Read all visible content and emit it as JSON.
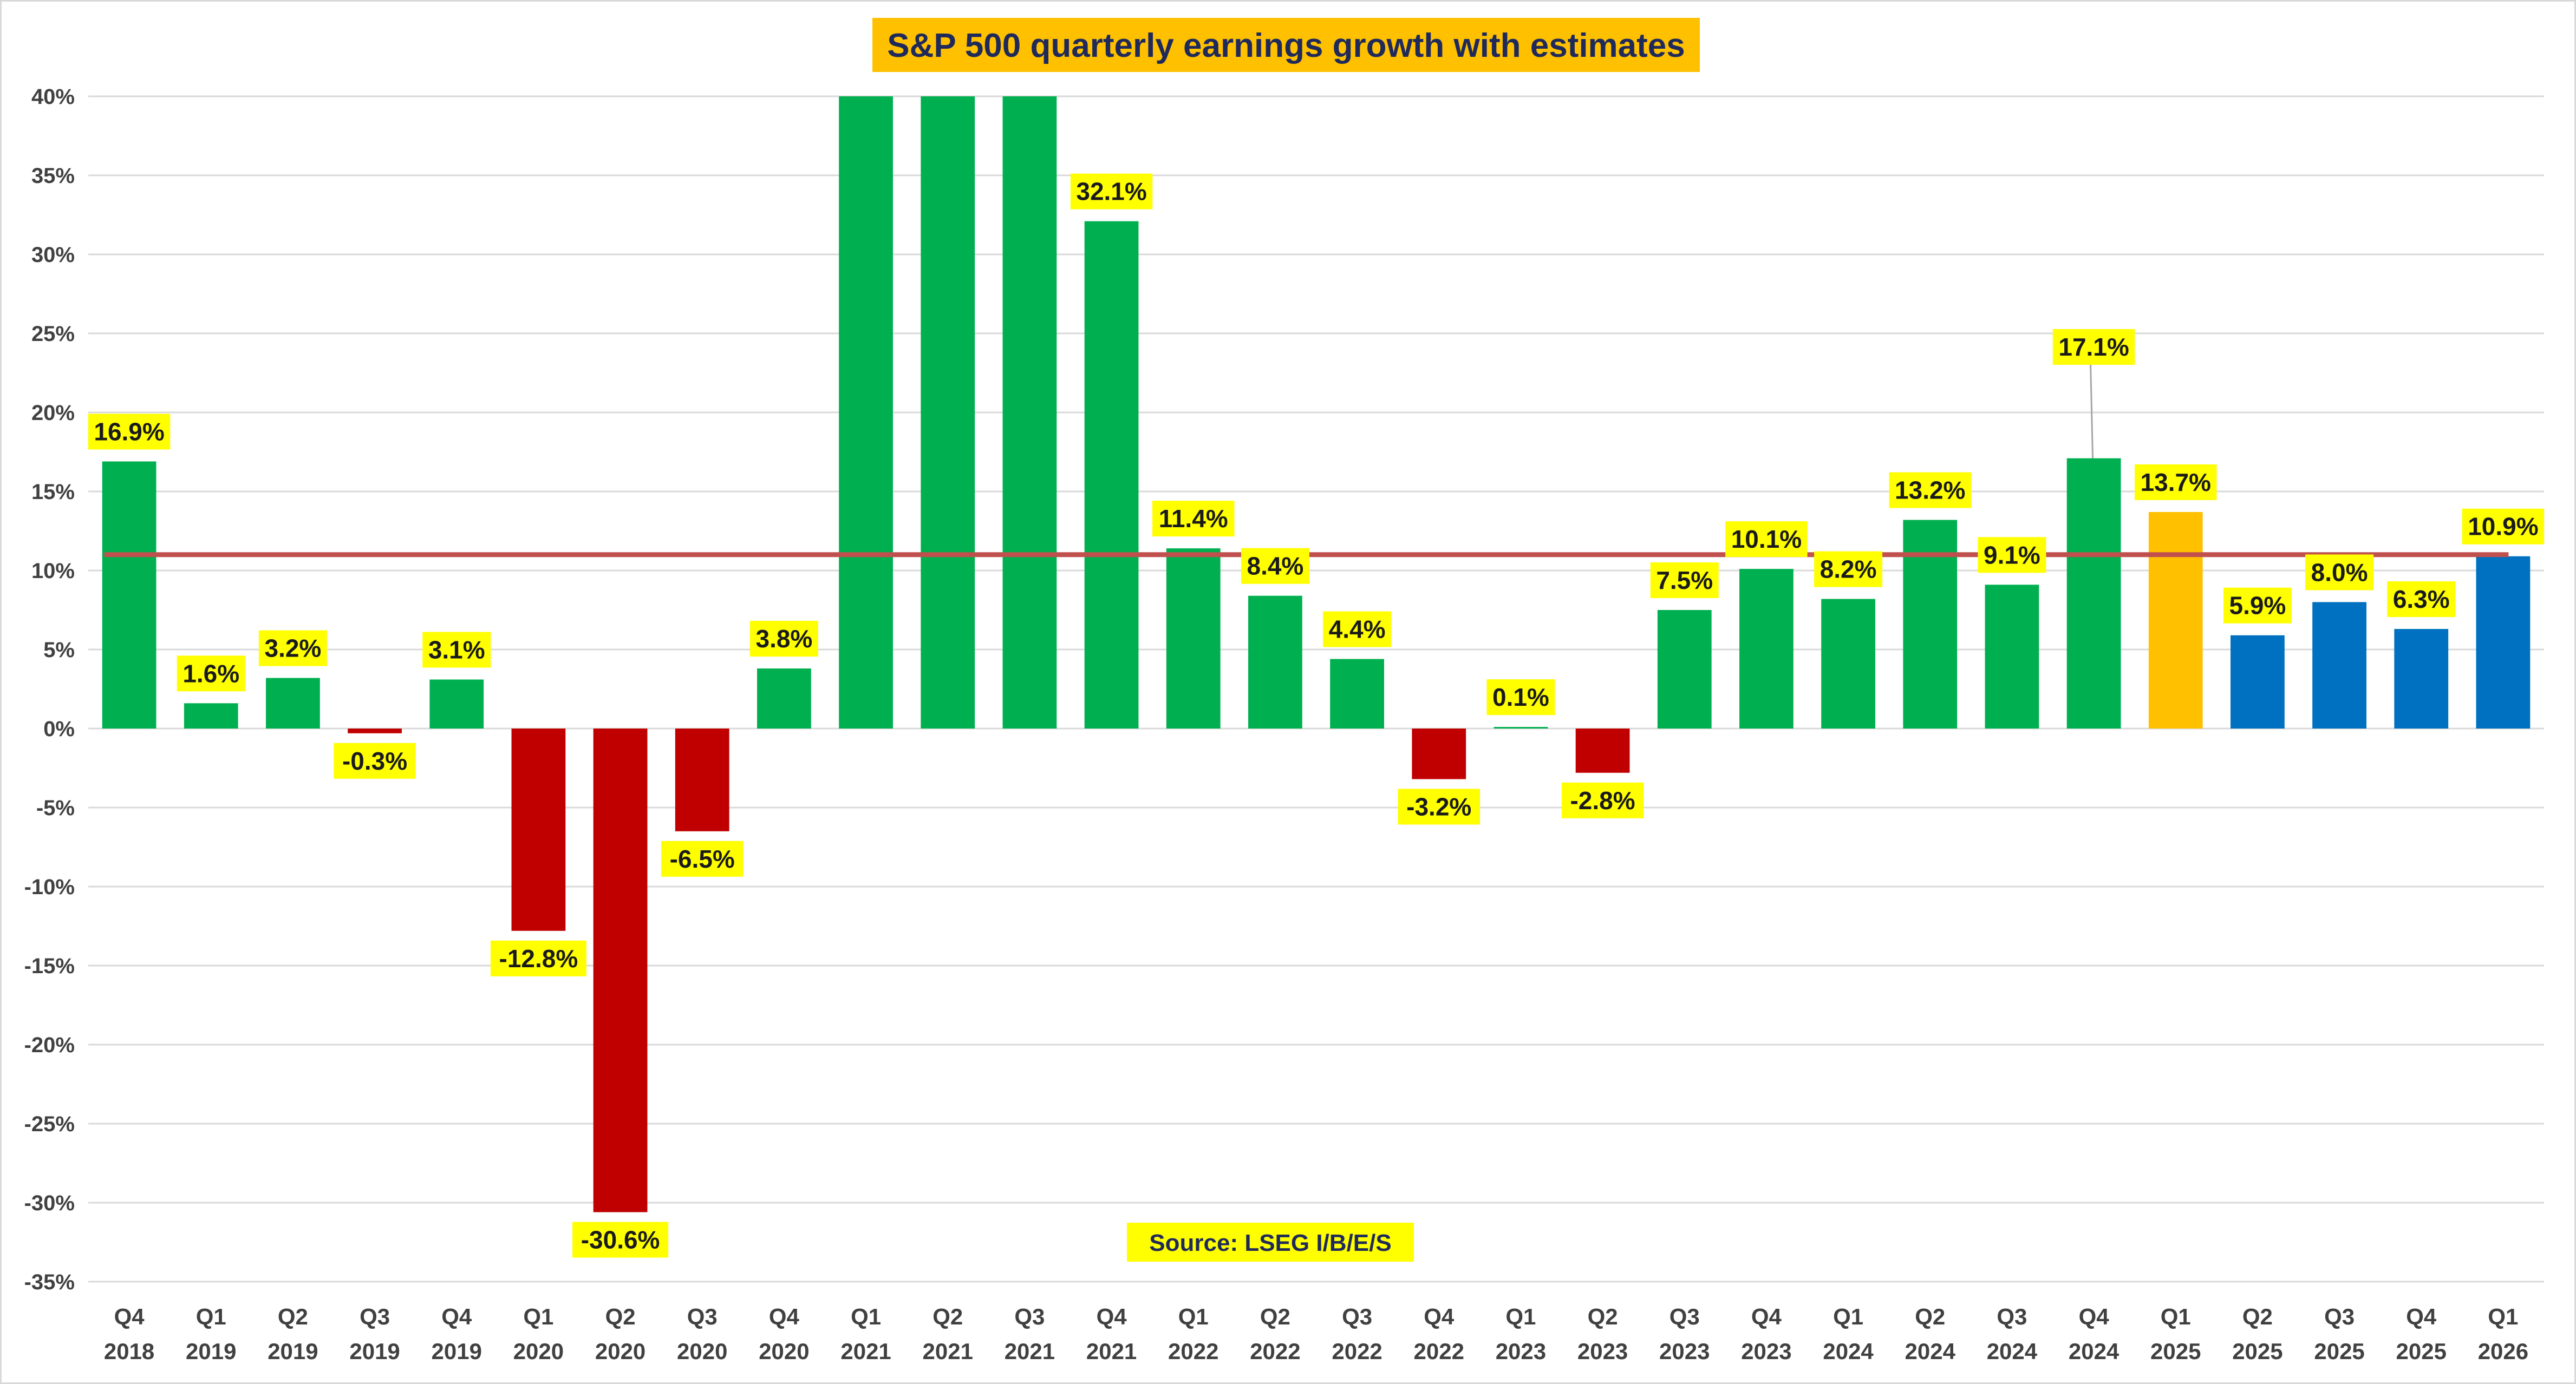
{
  "chart_data": {
    "type": "bar",
    "title": "S&P 500 quarterly earnings growth with estimates",
    "source_note": "Source: LSEG I/B/E/S",
    "categories": [
      [
        "Q4",
        "2018"
      ],
      [
        "Q1",
        "2019"
      ],
      [
        "Q2",
        "2019"
      ],
      [
        "Q3",
        "2019"
      ],
      [
        "Q4",
        "2019"
      ],
      [
        "Q1",
        "2020"
      ],
      [
        "Q2",
        "2020"
      ],
      [
        "Q3",
        "2020"
      ],
      [
        "Q4",
        "2020"
      ],
      [
        "Q1",
        "2021"
      ],
      [
        "Q2",
        "2021"
      ],
      [
        "Q3",
        "2021"
      ],
      [
        "Q4",
        "2021"
      ],
      [
        "Q1",
        "2022"
      ],
      [
        "Q2",
        "2022"
      ],
      [
        "Q3",
        "2022"
      ],
      [
        "Q4",
        "2022"
      ],
      [
        "Q1",
        "2023"
      ],
      [
        "Q2",
        "2023"
      ],
      [
        "Q3",
        "2023"
      ],
      [
        "Q4",
        "2023"
      ],
      [
        "Q1",
        "2024"
      ],
      [
        "Q2",
        "2024"
      ],
      [
        "Q3",
        "2024"
      ],
      [
        "Q4",
        "2024"
      ],
      [
        "Q1",
        "2025"
      ],
      [
        "Q2",
        "2025"
      ],
      [
        "Q3",
        "2025"
      ],
      [
        "Q4",
        "2025"
      ],
      [
        "Q1",
        "2026"
      ]
    ],
    "values": [
      16.9,
      1.6,
      3.2,
      -0.3,
      3.1,
      -12.8,
      -30.6,
      -6.5,
      3.8,
      40,
      40,
      40,
      32.1,
      11.4,
      8.4,
      4.4,
      -3.2,
      0.1,
      -2.8,
      7.5,
      10.1,
      8.2,
      13.2,
      9.1,
      17.1,
      13.7,
      5.9,
      8.0,
      6.3,
      10.9
    ],
    "data_labels": [
      "16.9%",
      "1.6%",
      "3.2%",
      "-0.3%",
      "3.1%",
      "-12.8%",
      "-30.6%",
      "-6.5%",
      "3.8%",
      "",
      "",
      "",
      "32.1%",
      "11.4%",
      "8.4%",
      "4.4%",
      "-3.2%",
      "0.1%",
      "-2.8%",
      "7.5%",
      "10.1%",
      "8.2%",
      "13.2%",
      "9.1%",
      "17.1%",
      "13.7%",
      "5.9%",
      "8.0%",
      "6.3%",
      "10.9%"
    ],
    "bar_status": [
      "actual",
      "actual",
      "actual",
      "actual",
      "actual",
      "actual",
      "actual",
      "actual",
      "actual",
      "actual",
      "actual",
      "actual",
      "actual",
      "actual",
      "actual",
      "actual",
      "actual",
      "actual",
      "actual",
      "actual",
      "actual",
      "actual",
      "actual",
      "actual",
      "actual",
      "current",
      "estimate",
      "estimate",
      "estimate",
      "estimate"
    ],
    "reference_line_value": 11.0,
    "y_ticks": [
      40,
      35,
      30,
      25,
      20,
      15,
      10,
      5,
      0,
      -5,
      -10,
      -15,
      -20,
      -25,
      -30,
      -35
    ],
    "y_tick_labels": [
      "40%",
      "35%",
      "30%",
      "25%",
      "20%",
      "15%",
      "10%",
      "5%",
      "0%",
      "-5%",
      "-10%",
      "-15%",
      "-20%",
      "-25%",
      "-30%",
      "-35%"
    ],
    "ylim": [
      -35,
      40
    ],
    "grid": true,
    "colors": {
      "positive": "#00b050",
      "negative": "#c00000",
      "current": "#ffc000",
      "estimate": "#0070c0",
      "reference_line": "#c0504d",
      "label_fill": "#ffff00",
      "title_fill": "#ffc000",
      "grid": "#d9d9d9"
    }
  }
}
